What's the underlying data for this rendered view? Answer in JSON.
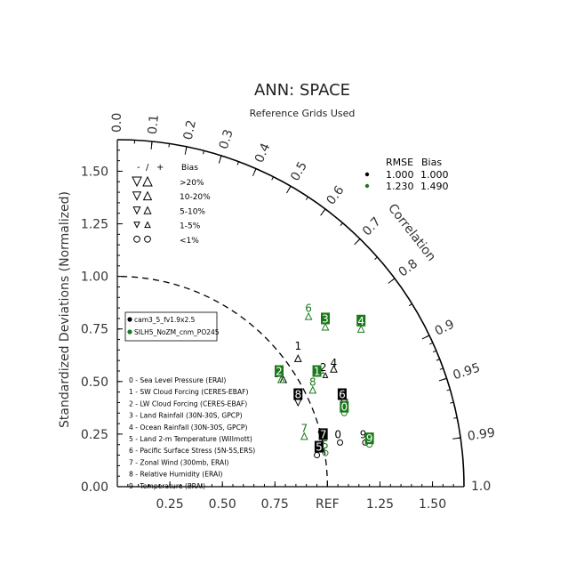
{
  "chart_data": {
    "type": "scatter",
    "subtype": "taylor-diagram",
    "title": "ANN: SPACE",
    "subtitle": "Reference Grids Used",
    "ylabel": "Standardized Deviations (Normalized)",
    "angular_label": "Correlation",
    "ref_label": "REF",
    "std_range": [
      0,
      1.65
    ],
    "std_ticks": [
      "0.00",
      "0.25",
      "0.50",
      "0.75",
      "1.00",
      "1.25",
      "1.50"
    ],
    "x_ticks": [
      "0.25",
      "0.50",
      "0.75",
      "1.25",
      "1.50"
    ],
    "corr_ticks": [
      "0.0",
      "0.1",
      "0.2",
      "0.3",
      "0.4",
      "0.5",
      "0.6",
      "0.7",
      "0.8",
      "0.9",
      "0.95",
      "0.99",
      "1.0"
    ],
    "bias_legend": {
      "header": [
        "-",
        "/",
        "+",
        "Bias"
      ],
      "rows": [
        ">20%",
        "10-20%",
        "5-10%",
        "1-5%",
        "<1%"
      ]
    },
    "rmse_bias": {
      "header": [
        "RMSE",
        "Bias"
      ],
      "rows": [
        {
          "rmse": "1.000",
          "bias": "1.000",
          "color": "#000000"
        },
        {
          "rmse": "1.230",
          "bias": "1.490",
          "color": "#1a7a1a"
        }
      ]
    },
    "cases": [
      {
        "name": "cam3_5_fv1.9x2.5",
        "color": "#000000"
      },
      {
        "name": "SILH5_NoZM_cnm_PO245",
        "color": "#1a7a1a"
      }
    ],
    "variables": [
      "0 - Sea Level Pressure (ERAI)",
      "1 - SW Cloud Forcing (CERES-EBAF)",
      "2 - LW Cloud Forcing (CERES-EBAF)",
      "3 - Land Rainfall (30N-30S, GPCP)",
      "4 - Ocean Rainfall (30N-30S, GPCP)",
      "5 - Land 2-m Temperature (Willmott)",
      "6 - Pacific Surface Stress (5N-5S,ERS)",
      "7 - Zonal Wind (300mb, ERAI)",
      "8 - Relative Humidity (ERAI)",
      "9 - Temperature (ERAI)"
    ],
    "series": [
      {
        "case": 0,
        "points": [
          {
            "id": "0",
            "x": 1.05,
            "y": 0.25,
            "box": false
          },
          {
            "id": "1",
            "x": 0.86,
            "y": 0.67,
            "box": false
          },
          {
            "id": "2",
            "x": 0.98,
            "y": 0.57,
            "box": false
          },
          {
            "id": "3",
            "x": 0.76,
            "y": 0.54,
            "box": false
          },
          {
            "id": "4",
            "x": 1.03,
            "y": 0.59,
            "box": false
          },
          {
            "id": "5",
            "x": 0.96,
            "y": 0.19,
            "box": true
          },
          {
            "id": "6",
            "x": 1.07,
            "y": 0.44,
            "box": true
          },
          {
            "id": "7",
            "x": 0.98,
            "y": 0.25,
            "box": true
          },
          {
            "id": "8",
            "x": 0.86,
            "y": 0.44,
            "box": true
          },
          {
            "id": "9",
            "x": 1.17,
            "y": 0.25,
            "box": false
          }
        ]
      },
      {
        "case": 1,
        "points": [
          {
            "id": "0",
            "x": 1.08,
            "y": 0.38,
            "box": true
          },
          {
            "id": "1",
            "x": 0.95,
            "y": 0.55,
            "box": true
          },
          {
            "id": "2",
            "x": 0.77,
            "y": 0.55,
            "box": true
          },
          {
            "id": "3",
            "x": 0.99,
            "y": 0.8,
            "box": true
          },
          {
            "id": "4",
            "x": 1.16,
            "y": 0.79,
            "box": true
          },
          {
            "id": "5",
            "x": 0.99,
            "y": 0.2,
            "box": false
          },
          {
            "id": "6",
            "x": 0.91,
            "y": 0.85,
            "box": false
          },
          {
            "id": "7",
            "x": 0.89,
            "y": 0.28,
            "box": false
          },
          {
            "id": "8",
            "x": 0.93,
            "y": 0.5,
            "box": false
          },
          {
            "id": "9",
            "x": 1.2,
            "y": 0.23,
            "box": true
          }
        ]
      }
    ],
    "bias_markers": [
      {
        "case": 0,
        "x": 1.06,
        "y": 0.21,
        "symbol": "circle"
      },
      {
        "case": 0,
        "x": 0.86,
        "y": 0.61,
        "symbol": "tri-up"
      },
      {
        "case": 0,
        "x": 0.99,
        "y": 0.53,
        "symbol": "tri-up-small"
      },
      {
        "case": 0,
        "x": 0.79,
        "y": 0.51,
        "symbol": "tri-up"
      },
      {
        "case": 0,
        "x": 1.03,
        "y": 0.56,
        "symbol": "tri-up"
      },
      {
        "case": 0,
        "x": 0.95,
        "y": 0.15,
        "symbol": "circle"
      },
      {
        "case": 0,
        "x": 1.08,
        "y": 0.4,
        "symbol": "tri-down"
      },
      {
        "case": 0,
        "x": 0.97,
        "y": 0.26,
        "symbol": "circle"
      },
      {
        "case": 0,
        "x": 0.86,
        "y": 0.4,
        "symbol": "tri-down"
      },
      {
        "case": 0,
        "x": 1.18,
        "y": 0.21,
        "symbol": "circle"
      },
      {
        "case": 1,
        "x": 1.08,
        "y": 0.35,
        "symbol": "circle"
      },
      {
        "case": 1,
        "x": 0.97,
        "y": 0.55,
        "symbol": "tri-up-small"
      },
      {
        "case": 1,
        "x": 0.78,
        "y": 0.51,
        "symbol": "tri-up"
      },
      {
        "case": 1,
        "x": 0.99,
        "y": 0.76,
        "symbol": "tri-up"
      },
      {
        "case": 1,
        "x": 1.16,
        "y": 0.75,
        "symbol": "tri-up"
      },
      {
        "case": 1,
        "x": 0.99,
        "y": 0.16,
        "symbol": "circle"
      },
      {
        "case": 1,
        "x": 0.91,
        "y": 0.81,
        "symbol": "tri-up"
      },
      {
        "case": 1,
        "x": 0.89,
        "y": 0.24,
        "symbol": "tri-up"
      },
      {
        "case": 1,
        "x": 0.93,
        "y": 0.46,
        "symbol": "tri-up"
      },
      {
        "case": 1,
        "x": 1.2,
        "y": 0.2,
        "symbol": "circle"
      }
    ]
  }
}
